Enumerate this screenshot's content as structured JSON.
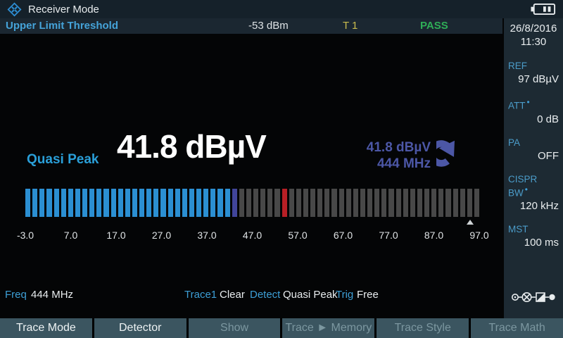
{
  "header": {
    "title": "Receiver Mode"
  },
  "limit_bar": {
    "label": "Upper Limit Threshold",
    "value": "-53 dBm",
    "trace_indicator": "T 1",
    "status": "PASS"
  },
  "sidebar": {
    "date": "26/8/2016",
    "time": "11:30",
    "params": [
      {
        "label": "REF",
        "value": "97 dBµV",
        "has_coupling_dot": false
      },
      {
        "label": "ATT",
        "value": "0 dB",
        "has_coupling_dot": true
      },
      {
        "label": "PA",
        "value": "OFF",
        "has_coupling_dot": false
      },
      {
        "label": "CISPR BW",
        "value": "120 kHz",
        "has_coupling_dot": true
      },
      {
        "label": "MST",
        "value": "100 ms",
        "has_coupling_dot": false
      }
    ]
  },
  "readout": {
    "detector": "Quasi Peak",
    "level": "41.8 dBµV",
    "maxhold_level": "41.8 dBµV",
    "maxhold_freq": "444 MHz"
  },
  "chart_data": {
    "type": "bar",
    "title": "Receiver level meter",
    "unit": "dBµV",
    "min": -3.0,
    "max": 97.0,
    "value": 41.8,
    "limit_value": 54.0,
    "marker_value": 95.0,
    "segment_count": 64,
    "tick_labels": [
      "-3.0",
      "7.0",
      "17.0",
      "27.0",
      "37.0",
      "47.0",
      "57.0",
      "67.0",
      "77.0",
      "87.0",
      "97.0"
    ],
    "colors": {
      "active": "#2b8fd2",
      "transition": "#41459b",
      "inactive": "#484848",
      "limit": "#b81f25"
    }
  },
  "status_row": {
    "freq_label": "Freq",
    "freq_value": "444 MHz",
    "trace_label": "Trace1",
    "trace_value": "Clear",
    "detect_label": "Detect",
    "detect_value": "Quasi Peak",
    "trig_label": "Trig",
    "trig_value": "Free"
  },
  "softkeys": [
    {
      "label": "Trace Mode",
      "enabled": true
    },
    {
      "label": "Detector",
      "enabled": true
    },
    {
      "label": "Show",
      "enabled": false
    },
    {
      "label": "Trace ► Memory",
      "enabled": false
    },
    {
      "label": "Trace Style",
      "enabled": false
    },
    {
      "label": "Trace Math",
      "enabled": false
    }
  ],
  "colors": {
    "accent_blue": "#2a9fd8",
    "maxhold_indigo": "#4c57a6",
    "pass_green": "#2fae57",
    "trace_yellow": "#c9bb4e",
    "softkey_bg": "#3b5560"
  }
}
